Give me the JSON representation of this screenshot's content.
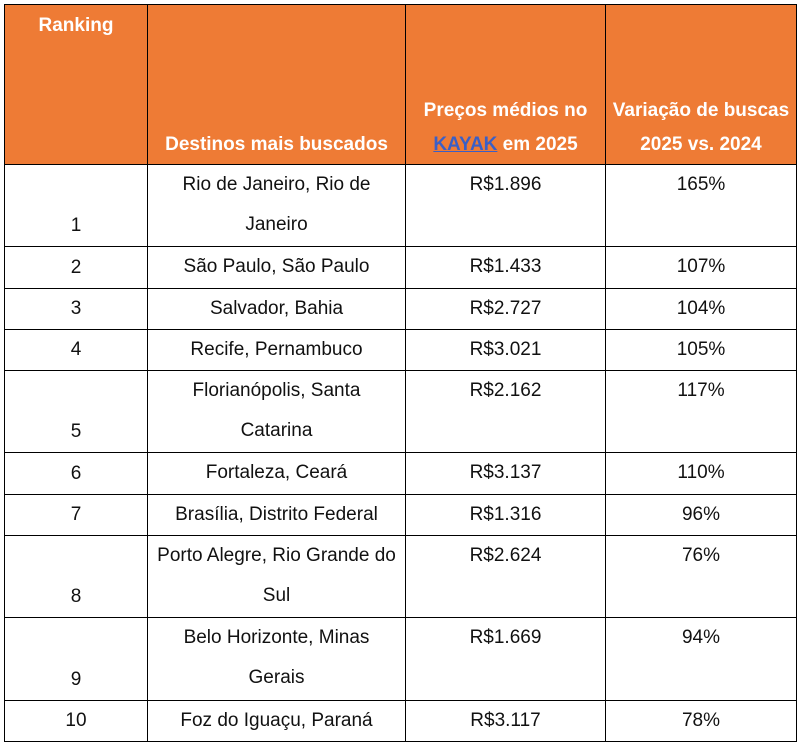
{
  "table": {
    "headers": {
      "ranking": "Ranking",
      "destinos": "Destinos mais buscados",
      "precos_pre": "Preços médios no",
      "precos_link": "KAYAK",
      "precos_post": " em 2025",
      "variacao": "Variação de buscas 2025 vs. 2024"
    },
    "rows": [
      {
        "rank": "1",
        "destino": "Rio de Janeiro, Rio de Janeiro",
        "preco": "R$1.896",
        "variacao": "165%"
      },
      {
        "rank": "2",
        "destino": "São Paulo, São Paulo",
        "preco": "R$1.433",
        "variacao": "107%"
      },
      {
        "rank": "3",
        "destino": "Salvador, Bahia",
        "preco": "R$2.727",
        "variacao": "104%"
      },
      {
        "rank": "4",
        "destino": "Recife, Pernambuco",
        "preco": "R$3.021",
        "variacao": "105%"
      },
      {
        "rank": "5",
        "destino": "Florianópolis, Santa Catarina",
        "preco": "R$2.162",
        "variacao": "117%"
      },
      {
        "rank": "6",
        "destino": "Fortaleza, Ceará",
        "preco": "R$3.137",
        "variacao": "110%"
      },
      {
        "rank": "7",
        "destino": "Brasília, Distrito Federal",
        "preco": "R$1.316",
        "variacao": "96%"
      },
      {
        "rank": "8",
        "destino": "Porto Alegre, Rio Grande do Sul",
        "preco": "R$2.624",
        "variacao": "76%"
      },
      {
        "rank": "9",
        "destino": "Belo Horizonte, Minas Gerais",
        "preco": "R$1.669",
        "variacao": "94%"
      },
      {
        "rank": "10",
        "destino": "Foz do Iguaçu, Paraná",
        "preco": "R$3.117",
        "variacao": "78%"
      }
    ],
    "colors": {
      "header_bg": "#ee7b35",
      "header_text": "#ffffff",
      "link": "#3a5fc7"
    }
  }
}
